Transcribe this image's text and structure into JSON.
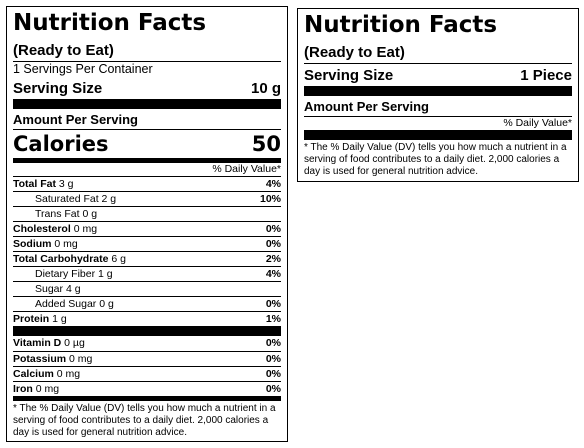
{
  "label_1": {
    "title": "Nutrition Facts",
    "subtitle": "(Ready to Eat)",
    "servings_per_container": "1 Servings Per Container",
    "serving_size_label": "Serving Size",
    "serving_size_value": "10 g",
    "amount_per_serving": "Amount Per Serving",
    "calories_label": "Calories",
    "calories_value": "50",
    "dv_header": "% Daily Value*",
    "nutrients": [
      {
        "name": "Total Fat",
        "amount": "3 g",
        "dv": "4%",
        "bold": true,
        "indent": 0
      },
      {
        "name": "Saturated Fat",
        "amount": "2 g",
        "dv": "10%",
        "bold": false,
        "indent": 1
      },
      {
        "name": "Trans Fat",
        "amount": "0 g",
        "dv": "",
        "bold": false,
        "indent": 1
      },
      {
        "name": "Cholesterol",
        "amount": "0 mg",
        "dv": "0%",
        "bold": true,
        "indent": 0
      },
      {
        "name": "Sodium",
        "amount": "0 mg",
        "dv": "0%",
        "bold": true,
        "indent": 0
      },
      {
        "name": "Total Carbohydrate",
        "amount": "6 g",
        "dv": "2%",
        "bold": true,
        "indent": 0
      },
      {
        "name": "Dietary Fiber",
        "amount": "1 g",
        "dv": "4%",
        "bold": false,
        "indent": 1
      },
      {
        "name": "Sugar",
        "amount": "4 g",
        "dv": "",
        "bold": false,
        "indent": 1
      },
      {
        "name": "Added Sugar",
        "amount": "0 g",
        "dv": "0%",
        "bold": false,
        "indent": 1
      },
      {
        "name": "Protein",
        "amount": "1 g",
        "dv": "1%",
        "bold": true,
        "indent": 0
      }
    ],
    "vitamins": [
      {
        "name": "Vitamin D",
        "amount": "0 µg",
        "dv": "0%"
      },
      {
        "name": "Potassium",
        "amount": "0 mg",
        "dv": "0%"
      },
      {
        "name": "Calcium",
        "amount": "0 mg",
        "dv": "0%"
      },
      {
        "name": "Iron",
        "amount": "0 mg",
        "dv": "0%"
      }
    ],
    "footnote": "* The % Daily Value (DV) tells you how much a nutrient in a serving of food contributes to a daily diet. 2,000 calories a day is used for general nutrition advice."
  },
  "label_2": {
    "title": "Nutrition Facts",
    "subtitle": "(Ready to Eat)",
    "serving_size_label": "Serving Size",
    "serving_size_value": "1 Piece",
    "amount_per_serving": "Amount Per Serving",
    "dv_header": "% Daily Value*",
    "footnote": "* The % Daily Value (DV) tells you how much a nutrient in a serving of food contributes to a daily diet. 2,000 calories a day is used for general nutrition advice."
  }
}
